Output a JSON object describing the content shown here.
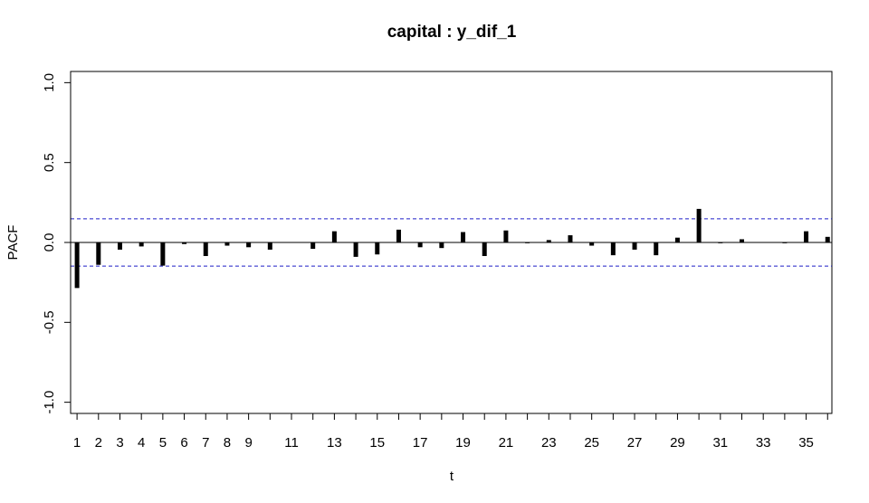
{
  "chart_data": {
    "type": "bar",
    "title": "capital : y_dif_1",
    "xlabel": "t",
    "ylabel": "PACF",
    "xlim": [
      0.7,
      36.2
    ],
    "ylim": [
      -1.07,
      1.07
    ],
    "y_ticks": [
      "-1.0",
      "-0.5",
      "0.0",
      "0.5",
      "1.0"
    ],
    "x_ticks_labeled": [
      "1",
      "2",
      "3",
      "4",
      "5",
      "6",
      "7",
      "8",
      "9",
      "11",
      "13",
      "15",
      "17",
      "19",
      "21",
      "23",
      "25",
      "27",
      "29",
      "31",
      "33",
      "35"
    ],
    "x": [
      1,
      2,
      3,
      4,
      5,
      6,
      7,
      8,
      9,
      10,
      11,
      12,
      13,
      14,
      15,
      16,
      17,
      18,
      19,
      20,
      21,
      22,
      23,
      24,
      25,
      26,
      27,
      28,
      29,
      30,
      31,
      32,
      33,
      34,
      35,
      36
    ],
    "values": [
      -0.285,
      -0.14,
      -0.045,
      -0.025,
      -0.145,
      -0.01,
      -0.085,
      -0.02,
      -0.03,
      -0.045,
      0.0,
      -0.04,
      0.07,
      -0.09,
      -0.075,
      0.08,
      -0.03,
      -0.035,
      0.065,
      -0.085,
      0.075,
      -0.005,
      0.015,
      0.045,
      -0.02,
      -0.08,
      -0.045,
      -0.08,
      0.03,
      0.21,
      -0.005,
      0.02,
      0.0,
      -0.005,
      0.07,
      0.035
    ],
    "confidence_bounds": [
      0.148,
      -0.148
    ],
    "bar_color": "#000000",
    "bound_color": "#1c1cc8",
    "grid": false,
    "legend": "none"
  }
}
